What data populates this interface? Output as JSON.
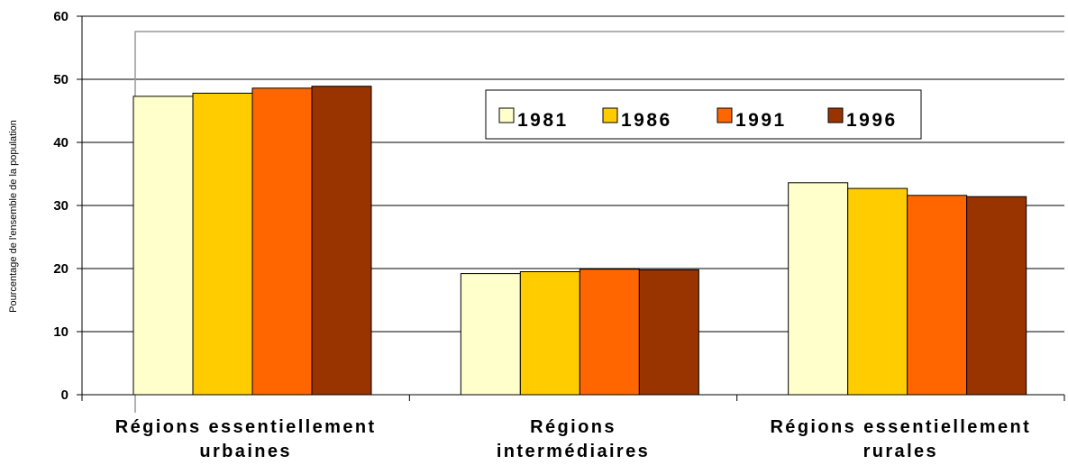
{
  "chart_data": {
    "type": "bar",
    "title": "",
    "xlabel": "",
    "ylabel": "Pourcentage de l'ensemble de la population",
    "ylim": [
      0,
      60
    ],
    "yticks": [
      "0",
      "10",
      "20",
      "30",
      "40",
      "50",
      "60"
    ],
    "grid": true,
    "legend_position": "top-center",
    "categories": [
      [
        "Régions essentiellement",
        "urbaines"
      ],
      [
        "Régions",
        "intermédiaires"
      ],
      [
        "Régions essentiellement",
        "rurales"
      ]
    ],
    "series": [
      {
        "name": "1981",
        "color": "#ffffcc",
        "values": [
          47.3,
          19.2,
          33.6
        ]
      },
      {
        "name": "1986",
        "color": "#ffcc00",
        "values": [
          47.8,
          19.5,
          32.7
        ]
      },
      {
        "name": "1991",
        "color": "#ff6600",
        "values": [
          48.6,
          19.9,
          31.6
        ]
      },
      {
        "name": "1996",
        "color": "#993300",
        "values": [
          48.9,
          19.8,
          31.4
        ]
      }
    ]
  }
}
